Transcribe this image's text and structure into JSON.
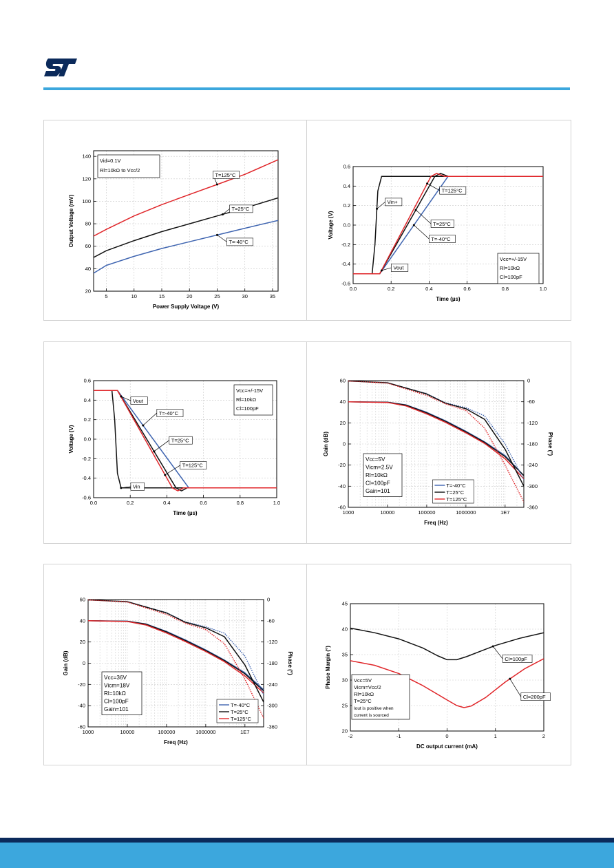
{
  "page": {
    "logo_name": "st-logo",
    "colors": {
      "rule": "#3ca7dd",
      "footer_dark": "#0b2a5b",
      "footer_light": "#3ca7dd"
    }
  },
  "colors": {
    "black": "#111111",
    "red": "#e0262a",
    "blue": "#3e64b0",
    "grid": "#c8c8c8"
  },
  "chart_data": [
    {
      "type": "line",
      "xlabel": "Power Supply Voltage (V)",
      "ylabel": "Output Voltage (mV)",
      "xlim": [
        2.7,
        36
      ],
      "ylim": [
        20,
        145
      ],
      "xticks": [
        5,
        10,
        15,
        20,
        25,
        30,
        35
      ],
      "yticks": [
        20,
        40,
        60,
        80,
        100,
        120,
        140
      ],
      "grid": true,
      "note": [
        "Vid=0.1V",
        "Rl=10kΩ to Vcc/2"
      ],
      "series": [
        {
          "name": "T=125°C",
          "color": "red",
          "x": [
            2.7,
            5,
            10,
            15,
            20,
            25,
            30,
            36
          ],
          "y": [
            69,
            75,
            87,
            97,
            106,
            115,
            124,
            137
          ]
        },
        {
          "name": "T=25°C",
          "color": "black",
          "x": [
            2.7,
            5,
            10,
            15,
            20,
            25,
            30,
            36
          ],
          "y": [
            50,
            56,
            65,
            73,
            80,
            87,
            94,
            103
          ]
        },
        {
          "name": "T=-40°C",
          "color": "blue",
          "x": [
            2.7,
            5,
            10,
            15,
            20,
            25,
            30,
            36
          ],
          "y": [
            36,
            43,
            51,
            58,
            64,
            70,
            76,
            83
          ]
        }
      ],
      "annotations": [
        {
          "text": "T=125°C",
          "series": 0,
          "at_x": 25
        },
        {
          "text": "T=25°C",
          "series": 1,
          "at_x": 26
        },
        {
          "text": "T=-40°C",
          "series": 2,
          "at_x": 25
        }
      ]
    },
    {
      "type": "line",
      "xlabel": "Time (µs)",
      "ylabel": "Voltage (V)",
      "xlim": [
        0,
        1
      ],
      "ylim": [
        -0.6,
        0.6
      ],
      "xticks": [
        0.0,
        0.2,
        0.4,
        0.6,
        0.8,
        1.0
      ],
      "xticklabels": [
        "0.0",
        "0.2",
        "0.4",
        "0.6",
        "0.8",
        "1.0"
      ],
      "yticks": [
        -0.6,
        -0.4,
        -0.2,
        0.0,
        0.2,
        0.4,
        0.6
      ],
      "yticklabels": [
        "-0.6",
        "-0.4",
        "-0.2",
        "0.0",
        "0.2",
        "0.4",
        "0.6"
      ],
      "grid": true,
      "note": [
        "Vcc=+/-15V",
        "Rl=10kΩ",
        "Cl=100pF"
      ],
      "series": [
        {
          "name": "Vin+",
          "color": "black",
          "x": [
            0,
            0.1,
            0.115,
            0.13,
            0.15,
            1
          ],
          "y": [
            -0.5,
            -0.5,
            -0.2,
            0.35,
            0.5,
            0.5
          ]
        },
        {
          "name": "T=-40°C",
          "color": "blue",
          "x": [
            0,
            0.14,
            0.5,
            1
          ],
          "y": [
            -0.5,
            -0.5,
            0.5,
            0.5
          ]
        },
        {
          "name": "T=25°C",
          "color": "black",
          "x": [
            0,
            0.14,
            0.43,
            0.46,
            0.5,
            1
          ],
          "y": [
            -0.5,
            -0.5,
            0.5,
            0.53,
            0.5,
            0.5
          ]
        },
        {
          "name": "T=125°C",
          "color": "red",
          "x": [
            0,
            0.14,
            0.41,
            0.44,
            0.48,
            1
          ],
          "y": [
            -0.5,
            -0.5,
            0.5,
            0.53,
            0.5,
            0.5
          ]
        }
      ],
      "annotations": [
        {
          "text": "Vin+",
          "series": 0,
          "at_x": 0.125
        },
        {
          "text": "Vout",
          "series": 2,
          "at_x": 0.15
        },
        {
          "text": "T=125°C",
          "series": 3,
          "at_x": 0.39
        },
        {
          "text": "T=25°C",
          "series": 2,
          "at_x": 0.33
        },
        {
          "text": "T=-40°C",
          "series": 1,
          "at_x": 0.32
        }
      ]
    },
    {
      "type": "line",
      "xlabel": "Time (µs)",
      "ylabel": "Voltage (V)",
      "xlim": [
        0,
        1
      ],
      "ylim": [
        -0.6,
        0.6
      ],
      "xticks": [
        0.0,
        0.2,
        0.4,
        0.6,
        0.8,
        1.0
      ],
      "xticklabels": [
        "0.0",
        "0.2",
        "0.4",
        "0.6",
        "0.8",
        "1.0"
      ],
      "yticks": [
        -0.6,
        -0.4,
        -0.2,
        0.0,
        0.2,
        0.4,
        0.6
      ],
      "yticklabels": [
        "-0.6",
        "-0.4",
        "-0.2",
        "0.0",
        "0.2",
        "0.4",
        "0.6"
      ],
      "grid": true,
      "note": [
        "Vcc=+/-15V",
        "Rl=10kΩ",
        "Cl=100pF"
      ],
      "series": [
        {
          "name": "Vin",
          "color": "black",
          "x": [
            0,
            0.1,
            0.115,
            0.13,
            0.15,
            1
          ],
          "y": [
            0.5,
            0.5,
            0.2,
            -0.35,
            -0.5,
            -0.5
          ]
        },
        {
          "name": "T=-40°C",
          "color": "blue",
          "x": [
            0,
            0.13,
            0.52,
            1
          ],
          "y": [
            0.5,
            0.5,
            -0.5,
            -0.5
          ]
        },
        {
          "name": "T=25°C",
          "color": "black",
          "x": [
            0,
            0.13,
            0.45,
            0.48,
            0.51,
            1
          ],
          "y": [
            0.5,
            0.5,
            -0.5,
            -0.53,
            -0.5,
            -0.5
          ]
        },
        {
          "name": "T=125°C",
          "color": "red",
          "x": [
            0,
            0.13,
            0.43,
            0.46,
            0.49,
            1
          ],
          "y": [
            0.5,
            0.5,
            -0.5,
            -0.53,
            -0.5,
            -0.5
          ]
        }
      ],
      "annotations": [
        {
          "text": "Vout",
          "series": 2,
          "at_x": 0.15
        },
        {
          "text": "T=-40°C",
          "series": 1,
          "at_x": 0.27
        },
        {
          "text": "T=25°C",
          "series": 2,
          "at_x": 0.33
        },
        {
          "text": "T=125°C",
          "series": 3,
          "at_x": 0.39
        },
        {
          "text": "Vin",
          "series": 0,
          "at_x": 0.15
        }
      ]
    },
    {
      "type": "line",
      "log_x": true,
      "xlabel": "Freq (Hz)",
      "ylabel": "Gain (dB)",
      "y2label": "Phase (°)",
      "xlim": [
        1000,
        30000000
      ],
      "ylim": [
        -60,
        60
      ],
      "y2lim": [
        -360,
        0
      ],
      "xticks": [
        1000,
        10000,
        100000,
        1000000,
        10000000
      ],
      "xticklabels": [
        "1000",
        "10000",
        "100000",
        "1000000",
        "1E7"
      ],
      "yticks": [
        -60,
        -40,
        -20,
        0,
        20,
        40,
        60
      ],
      "y2ticks": [
        -360,
        -300,
        -240,
        -180,
        -120,
        -60,
        0
      ],
      "grid": true,
      "note": [
        "Vcc=5V",
        "Vicm=2.5V",
        "Rl=10kΩ",
        "Cl=100pF",
        "Gain=101"
      ],
      "legend": {
        "position": "bottom-center",
        "entries": [
          "T=-40°C",
          "T=25°C",
          "T=125°C"
        ],
        "colors": [
          "blue",
          "black",
          "red"
        ]
      },
      "series": [
        {
          "name": "Gain T=-40°C",
          "axis": "left",
          "color": "blue",
          "x": [
            1000,
            10000,
            30000,
            100000,
            300000,
            1000000,
            3000000,
            10000000,
            30000000
          ],
          "y": [
            40,
            39.6,
            37,
            30,
            22,
            12,
            2,
            -11,
            -30
          ]
        },
        {
          "name": "Gain T=25°C",
          "axis": "left",
          "color": "black",
          "x": [
            1000,
            10000,
            30000,
            100000,
            300000,
            1000000,
            3000000,
            10000000,
            30000000
          ],
          "y": [
            40,
            39.5,
            36.8,
            29.5,
            21.5,
            11.5,
            1.5,
            -12,
            -30
          ]
        },
        {
          "name": "Gain T=125°C",
          "axis": "left",
          "color": "red",
          "x": [
            1000,
            10000,
            30000,
            100000,
            300000,
            1000000,
            3000000,
            10000000,
            30000000
          ],
          "y": [
            40,
            39.3,
            36,
            28.5,
            20.5,
            10.5,
            0.5,
            -14,
            -33
          ]
        },
        {
          "name": "Phase T=-40°C",
          "axis": "right",
          "color": "blue",
          "dotted": true,
          "x": [
            1000,
            10000,
            100000,
            300000,
            1000000,
            3000000,
            10000000,
            30000000
          ],
          "y": [
            -1,
            -6,
            -37,
            -63,
            -77,
            -100,
            -180,
            -282
          ]
        },
        {
          "name": "Phase T=25°C",
          "axis": "right",
          "color": "black",
          "x": [
            1000,
            10000,
            100000,
            300000,
            1000000,
            3000000,
            10000000,
            30000000
          ],
          "y": [
            -1,
            -6,
            -38,
            -64,
            -80,
            -110,
            -195,
            -300
          ]
        },
        {
          "name": "Phase T=125°C",
          "axis": "right",
          "color": "red",
          "dotted": true,
          "x": [
            1000,
            10000,
            100000,
            300000,
            1000000,
            3000000,
            10000000,
            30000000
          ],
          "y": [
            -1,
            -7,
            -42,
            -66,
            -85,
            -135,
            -240,
            -345
          ]
        }
      ]
    },
    {
      "type": "line",
      "log_x": true,
      "xlabel": "Freq (Hz)",
      "ylabel": "Gain (dB)",
      "y2label": "Phase (°)",
      "xlim": [
        1000,
        30000000
      ],
      "ylim": [
        -60,
        60
      ],
      "y2lim": [
        -360,
        0
      ],
      "xticks": [
        1000,
        10000,
        100000,
        1000000,
        10000000
      ],
      "xticklabels": [
        "1000",
        "10000",
        "100000",
        "1000000",
        "1E7"
      ],
      "yticks": [
        -60,
        -40,
        -20,
        0,
        20,
        40,
        60
      ],
      "y2ticks": [
        -360,
        -300,
        -240,
        -180,
        -120,
        -60,
        0
      ],
      "grid": true,
      "note": [
        "Vcc=36V",
        "Vicm=18V",
        "Rl=10kΩ",
        "Cl=100pF",
        "Gain=101"
      ],
      "legend": {
        "position": "bottom-right",
        "entries": [
          "T=-40°C",
          "T=25°C",
          "T=125°C"
        ],
        "colors": [
          "blue",
          "black",
          "red"
        ]
      },
      "series": [
        {
          "name": "Gain T=-40°C",
          "axis": "left",
          "color": "blue",
          "x": [
            1000,
            10000,
            30000,
            100000,
            300000,
            1000000,
            3000000,
            10000000,
            30000000
          ],
          "y": [
            40,
            39.6,
            37,
            30,
            22,
            12.5,
            3,
            -9,
            -25
          ]
        },
        {
          "name": "Gain T=25°C",
          "axis": "left",
          "color": "black",
          "x": [
            1000,
            10000,
            30000,
            100000,
            300000,
            1000000,
            3000000,
            10000000,
            30000000
          ],
          "y": [
            40,
            39.5,
            36.8,
            29.5,
            21.5,
            12,
            2.5,
            -10,
            -26
          ]
        },
        {
          "name": "Gain T=125°C",
          "axis": "left",
          "color": "red",
          "x": [
            1000,
            10000,
            30000,
            100000,
            300000,
            1000000,
            3000000,
            10000000,
            30000000
          ],
          "y": [
            40,
            39.3,
            36,
            28.5,
            20.5,
            11,
            1.5,
            -12,
            -28
          ]
        },
        {
          "name": "Phase T=-40°C",
          "axis": "right",
          "color": "blue",
          "dotted": true,
          "x": [
            1000,
            10000,
            100000,
            300000,
            1000000,
            3000000,
            10000000,
            30000000
          ],
          "y": [
            -1,
            -6,
            -37,
            -63,
            -77,
            -95,
            -160,
            -270
          ]
        },
        {
          "name": "Phase T=25°C",
          "axis": "right",
          "color": "black",
          "x": [
            1000,
            10000,
            100000,
            300000,
            1000000,
            3000000,
            10000000,
            30000000
          ],
          "y": [
            -1,
            -6,
            -38,
            -64,
            -80,
            -105,
            -185,
            -290
          ]
        },
        {
          "name": "Phase T=125°C",
          "axis": "right",
          "color": "red",
          "dotted": true,
          "x": [
            1000,
            10000,
            100000,
            300000,
            1000000,
            3000000,
            10000000,
            30000000
          ],
          "y": [
            -1,
            -7,
            -42,
            -67,
            -85,
            -125,
            -225,
            -335
          ]
        }
      ]
    },
    {
      "type": "line",
      "xlabel": "DC output current (mA)",
      "ylabel": "Phase Margin (°)",
      "xlim": [
        -2,
        2
      ],
      "ylim": [
        20,
        45
      ],
      "xticks": [
        -2,
        -1,
        0,
        1,
        2
      ],
      "yticks": [
        20,
        25,
        30,
        35,
        40,
        45
      ],
      "grid": true,
      "note": [
        "Vcc=5V",
        "Vicm=Vcc/2",
        "Rl=10kΩ",
        "T=25°C",
        "Iout is positive when",
        "current is sourced"
      ],
      "series": [
        {
          "name": "Cl=100pF",
          "color": "black",
          "x": [
            -2,
            -1.5,
            -1,
            -0.5,
            -0.2,
            0,
            0.2,
            0.4,
            0.7,
            1,
            1.5,
            2
          ],
          "y": [
            40.2,
            39.3,
            38.1,
            36.3,
            34.8,
            34,
            34,
            34.6,
            35.7,
            36.8,
            38.2,
            39.3
          ]
        },
        {
          "name": "Cl=200pF",
          "color": "red",
          "x": [
            -2,
            -1.5,
            -1,
            -0.5,
            0,
            0.2,
            0.35,
            0.5,
            0.8,
            1.2,
            1.6,
            2
          ],
          "y": [
            33.8,
            32.9,
            31.3,
            28.9,
            26.1,
            25,
            24.6,
            24.9,
            26.6,
            29.6,
            32.2,
            34.2
          ]
        }
      ],
      "annotations": [
        {
          "text": "Cl=100pF",
          "series": 0,
          "at_x": 0.95
        },
        {
          "text": "Cl=200pF",
          "series": 1,
          "at_x": 1.3
        }
      ]
    }
  ]
}
